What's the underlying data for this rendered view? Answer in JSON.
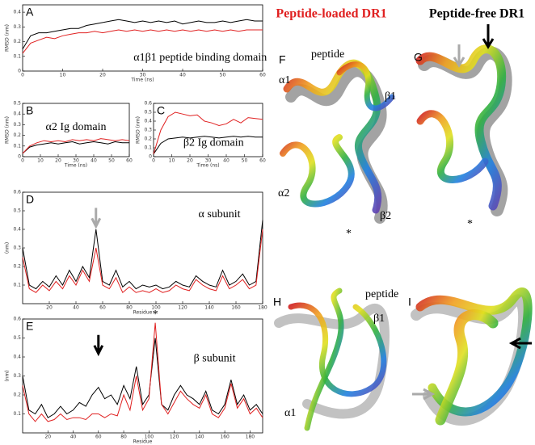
{
  "headings": [
    "Peptide-loaded DR1",
    "Peptide-free DR1"
  ],
  "protein_panels": [
    {
      "label": "F",
      "annotations": [
        "peptide",
        "α1",
        "β1",
        "α2",
        "β2",
        "*"
      ]
    },
    {
      "label": "G",
      "annotations": [
        "*"
      ]
    },
    {
      "label": "H",
      "annotations": [
        "peptide",
        "β1",
        "α1"
      ]
    },
    {
      "label": "I",
      "annotations": []
    }
  ],
  "chart_data": [
    {
      "type": "line",
      "panel": "A",
      "x_label": "Time (ns)",
      "y_label": "RMSD (nm)",
      "annotation": "α1β1 peptide binding domain",
      "x": [
        0,
        2,
        4,
        6,
        8,
        10,
        12,
        14,
        16,
        18,
        20,
        22,
        24,
        26,
        28,
        30,
        32,
        34,
        36,
        38,
        40,
        42,
        44,
        46,
        48,
        50,
        52,
        54,
        56,
        58,
        60
      ],
      "xlim": [
        0,
        60
      ],
      "xticks": [
        0,
        10,
        20,
        30,
        40,
        50,
        60
      ],
      "ylim": [
        0,
        0.45
      ],
      "yticks": [
        0,
        0.1,
        0.2,
        0.3,
        0.4
      ],
      "series": [
        {
          "name": "Peptide-free",
          "color": "#000000",
          "values": [
            0.15,
            0.24,
            0.26,
            0.26,
            0.27,
            0.28,
            0.29,
            0.29,
            0.31,
            0.32,
            0.33,
            0.34,
            0.35,
            0.34,
            0.33,
            0.34,
            0.33,
            0.34,
            0.33,
            0.34,
            0.32,
            0.33,
            0.34,
            0.33,
            0.33,
            0.34,
            0.33,
            0.34,
            0.35,
            0.34,
            0.34
          ]
        },
        {
          "name": "Peptide-loaded",
          "color": "#e02020",
          "values": [
            0.12,
            0.19,
            0.21,
            0.23,
            0.22,
            0.24,
            0.25,
            0.26,
            0.26,
            0.27,
            0.26,
            0.27,
            0.28,
            0.27,
            0.28,
            0.27,
            0.28,
            0.27,
            0.28,
            0.27,
            0.28,
            0.27,
            0.28,
            0.27,
            0.28,
            0.27,
            0.28,
            0.27,
            0.28,
            0.28,
            0.28
          ]
        }
      ]
    },
    {
      "type": "line",
      "panel": "B",
      "x_label": "Time (ns)",
      "y_label": "RMSD (nm)",
      "annotation": "α2 Ig domain",
      "x": [
        0,
        4,
        8,
        12,
        16,
        20,
        24,
        28,
        32,
        36,
        40,
        44,
        48,
        52,
        56,
        60
      ],
      "xlim": [
        0,
        60
      ],
      "xticks": [
        0,
        10,
        20,
        30,
        40,
        50,
        60
      ],
      "ylim": [
        0,
        0.5
      ],
      "yticks": [
        0,
        0.1,
        0.2,
        0.3,
        0.4,
        0.5
      ],
      "series": [
        {
          "name": "Peptide-free",
          "color": "#000000",
          "values": [
            0.03,
            0.09,
            0.11,
            0.12,
            0.13,
            0.12,
            0.13,
            0.14,
            0.12,
            0.13,
            0.14,
            0.13,
            0.12,
            0.14,
            0.13,
            0.13
          ]
        },
        {
          "name": "Peptide-loaded",
          "color": "#e02020",
          "values": [
            0.03,
            0.1,
            0.13,
            0.15,
            0.14,
            0.15,
            0.14,
            0.16,
            0.15,
            0.16,
            0.15,
            0.17,
            0.16,
            0.15,
            0.16,
            0.15
          ]
        }
      ]
    },
    {
      "type": "line",
      "panel": "C",
      "x_label": "Time (ns)",
      "y_label": "RMSD (nm)",
      "annotation": "β2 Ig domain",
      "x": [
        0,
        4,
        8,
        12,
        16,
        20,
        24,
        28,
        32,
        36,
        40,
        44,
        48,
        52,
        56,
        60
      ],
      "xlim": [
        0,
        60
      ],
      "xticks": [
        0,
        10,
        20,
        30,
        40,
        50,
        60
      ],
      "ylim": [
        0,
        0.6
      ],
      "yticks": [
        0,
        0.1,
        0.2,
        0.3,
        0.4,
        0.5,
        0.6
      ],
      "series": [
        {
          "name": "Peptide-free",
          "color": "#000000",
          "values": [
            0.03,
            0.15,
            0.2,
            0.21,
            0.22,
            0.21,
            0.22,
            0.23,
            0.22,
            0.21,
            0.22,
            0.23,
            0.22,
            0.23,
            0.22,
            0.22
          ]
        },
        {
          "name": "Peptide-loaded",
          "color": "#e02020",
          "values": [
            0.03,
            0.3,
            0.45,
            0.5,
            0.48,
            0.46,
            0.47,
            0.4,
            0.38,
            0.35,
            0.37,
            0.42,
            0.38,
            0.44,
            0.43,
            0.42
          ]
        }
      ]
    },
    {
      "type": "line",
      "panel": "D",
      "x_label": "Residue",
      "y_label": "(nm)",
      "annotation": "α subunit",
      "x": [
        0,
        5,
        10,
        15,
        20,
        25,
        30,
        35,
        40,
        45,
        50,
        55,
        60,
        65,
        70,
        75,
        80,
        85,
        90,
        95,
        100,
        105,
        110,
        115,
        120,
        125,
        130,
        135,
        140,
        145,
        150,
        155,
        160,
        165,
        170,
        175,
        180
      ],
      "xlim": [
        0,
        180
      ],
      "xticks": [
        20,
        40,
        60,
        80,
        100,
        120,
        140,
        160,
        180
      ],
      "ylim": [
        0,
        0.6
      ],
      "yticks": [
        0.1,
        0.2,
        0.3,
        0.4,
        0.5,
        0.6
      ],
      "series": [
        {
          "name": "Peptide-free",
          "color": "#000000",
          "values": [
            0.3,
            0.1,
            0.08,
            0.12,
            0.09,
            0.15,
            0.1,
            0.18,
            0.12,
            0.2,
            0.14,
            0.4,
            0.12,
            0.1,
            0.18,
            0.09,
            0.12,
            0.08,
            0.1,
            0.09,
            0.1,
            0.08,
            0.09,
            0.12,
            0.1,
            0.09,
            0.15,
            0.12,
            0.1,
            0.09,
            0.18,
            0.1,
            0.12,
            0.16,
            0.1,
            0.12,
            0.45
          ]
        },
        {
          "name": "Peptide-loaded",
          "color": "#e02020",
          "values": [
            0.25,
            0.08,
            0.06,
            0.1,
            0.07,
            0.12,
            0.08,
            0.15,
            0.1,
            0.18,
            0.12,
            0.3,
            0.1,
            0.08,
            0.14,
            0.06,
            0.09,
            0.06,
            0.07,
            0.06,
            0.08,
            0.06,
            0.07,
            0.1,
            0.08,
            0.07,
            0.13,
            0.1,
            0.08,
            0.07,
            0.15,
            0.08,
            0.1,
            0.13,
            0.08,
            0.1,
            0.4
          ]
        }
      ]
    },
    {
      "type": "line",
      "panel": "E",
      "x_label": "Residue",
      "y_label": "(nm)",
      "annotation": "β subunit",
      "peak_marker": "*",
      "x": [
        0,
        5,
        10,
        15,
        20,
        25,
        30,
        35,
        40,
        45,
        50,
        55,
        60,
        65,
        70,
        75,
        80,
        85,
        90,
        95,
        100,
        105,
        110,
        115,
        120,
        125,
        130,
        135,
        140,
        145,
        150,
        155,
        160,
        165,
        170,
        175,
        180,
        185,
        190
      ],
      "xlim": [
        0,
        190
      ],
      "xticks": [
        20,
        40,
        60,
        80,
        100,
        120,
        140,
        160,
        180
      ],
      "ylim": [
        0,
        0.6
      ],
      "yticks": [
        0.1,
        0.2,
        0.3,
        0.4,
        0.5,
        0.6
      ],
      "series": [
        {
          "name": "Peptide-free",
          "color": "#000000",
          "values": [
            0.3,
            0.12,
            0.1,
            0.15,
            0.08,
            0.1,
            0.14,
            0.1,
            0.12,
            0.16,
            0.14,
            0.2,
            0.24,
            0.18,
            0.2,
            0.15,
            0.25,
            0.18,
            0.35,
            0.15,
            0.2,
            0.5,
            0.15,
            0.12,
            0.2,
            0.25,
            0.2,
            0.18,
            0.15,
            0.22,
            0.12,
            0.1,
            0.15,
            0.28,
            0.15,
            0.2,
            0.12,
            0.15,
            0.1
          ]
        },
        {
          "name": "Peptide-loaded",
          "color": "#e02020",
          "values": [
            0.25,
            0.1,
            0.06,
            0.1,
            0.06,
            0.07,
            0.1,
            0.07,
            0.08,
            0.08,
            0.07,
            0.1,
            0.1,
            0.08,
            0.1,
            0.09,
            0.2,
            0.12,
            0.3,
            0.12,
            0.18,
            0.58,
            0.15,
            0.1,
            0.16,
            0.22,
            0.18,
            0.15,
            0.13,
            0.2,
            0.1,
            0.08,
            0.13,
            0.26,
            0.13,
            0.18,
            0.1,
            0.13,
            0.08
          ]
        }
      ]
    }
  ]
}
